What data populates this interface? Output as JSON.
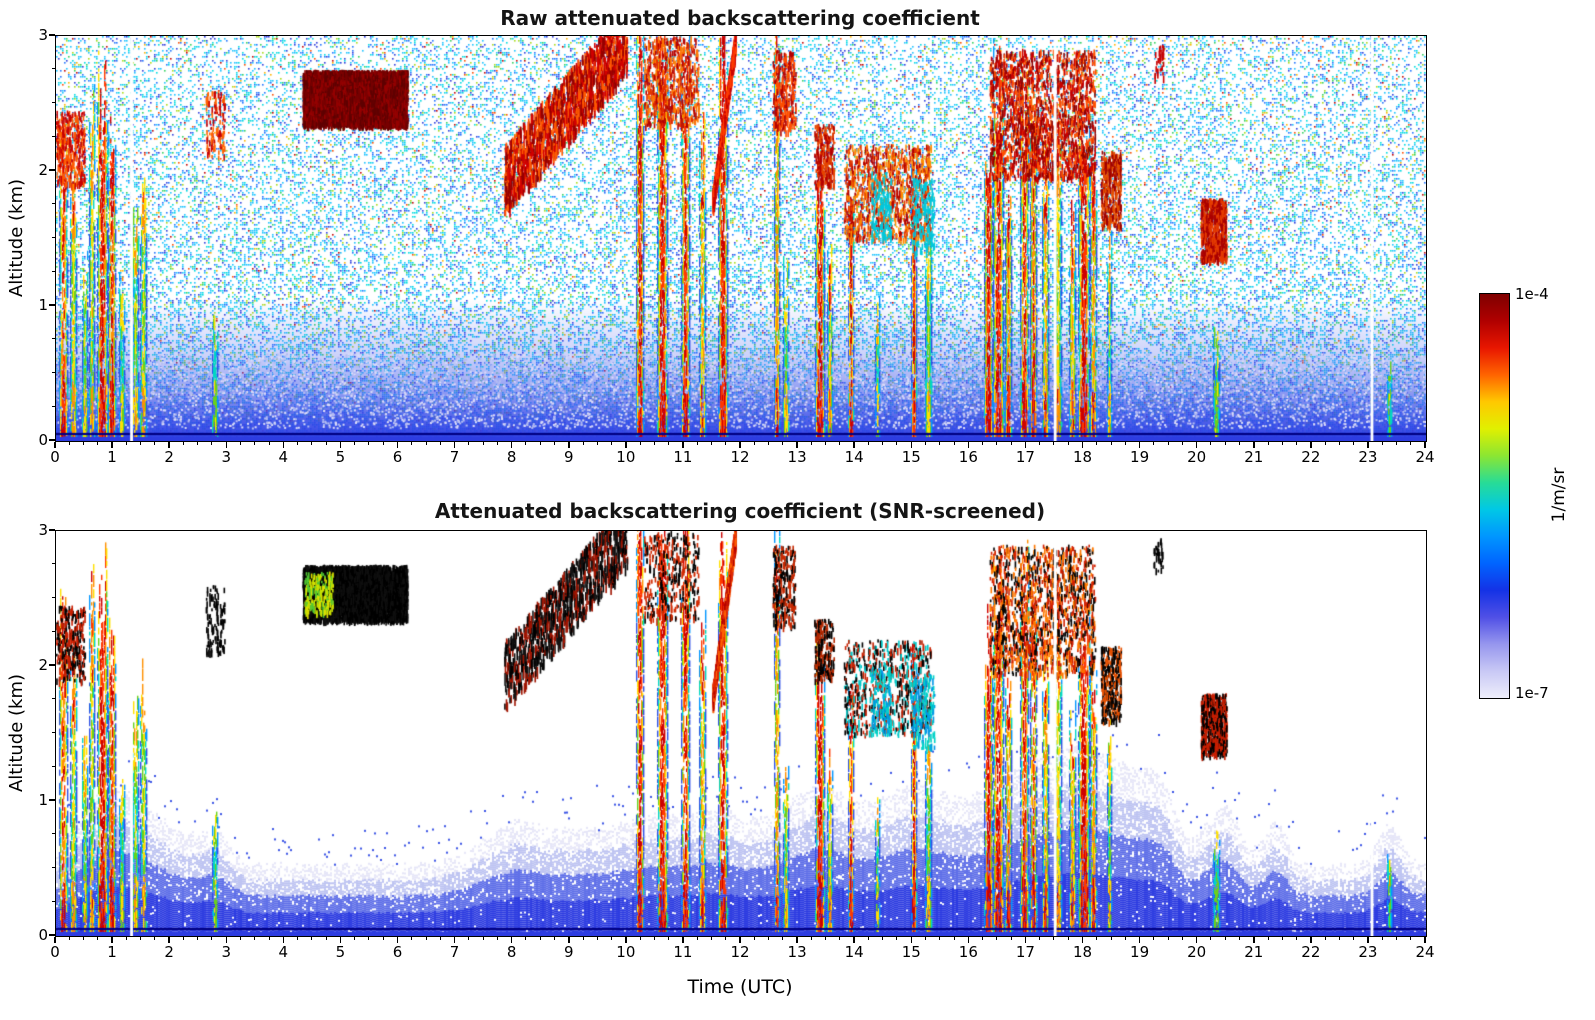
{
  "chart_data": {
    "type": "heatmap",
    "panels": [
      {
        "id": "raw",
        "title": "Raw attenuated backscattering coefficient"
      },
      {
        "id": "screened",
        "title": "Attenuated backscattering coefficient (SNR-screened)"
      }
    ],
    "x": {
      "label": "Time (UTC)",
      "min": 0,
      "max": 24,
      "minor_step": 0.25,
      "ticks": [
        0,
        1,
        2,
        3,
        4,
        5,
        6,
        7,
        8,
        9,
        10,
        11,
        12,
        13,
        14,
        15,
        16,
        17,
        18,
        19,
        20,
        21,
        22,
        23,
        24
      ]
    },
    "y": {
      "label": "Altitude (km)",
      "min": 0,
      "max": 3,
      "minor_step": 0.25,
      "ticks": [
        0,
        1,
        2,
        3
      ]
    },
    "colorbar": {
      "max_label": "1e-4",
      "min_label": "1e-7",
      "unit": "1/m/sr",
      "colors": [
        "#7f0000",
        "#b00000",
        "#e81600",
        "#ff6400",
        "#ffc800",
        "#e1f000",
        "#8ce632",
        "#28dc96",
        "#00c8e6",
        "#0096ff",
        "#0064ff",
        "#1432e6",
        "#5050e6",
        "#9696ee",
        "#c8c8f5",
        "#eeeefb"
      ]
    },
    "gaps": [
      1.32,
      17.5,
      23.05
    ],
    "boundary_layer": {
      "base_top_km": 0.5,
      "bumps": [
        [
          0.8,
          0.45,
          0.5
        ],
        [
          1.5,
          0.35,
          0.3
        ],
        [
          2.2,
          0.35,
          0.2
        ],
        [
          2.8,
          0.25,
          0.2
        ],
        [
          7.9,
          0.5,
          0.2
        ],
        [
          9.0,
          0.9,
          0.22
        ],
        [
          10.6,
          0.7,
          0.3
        ],
        [
          11.7,
          0.5,
          0.3
        ],
        [
          12.7,
          0.4,
          0.25
        ],
        [
          13.4,
          0.4,
          0.3
        ],
        [
          14.1,
          0.8,
          0.35
        ],
        [
          15.1,
          0.5,
          0.3
        ],
        [
          16.5,
          0.9,
          0.45
        ],
        [
          17.5,
          0.7,
          0.45
        ],
        [
          18.1,
          0.4,
          0.4
        ],
        [
          18.9,
          0.4,
          0.55
        ],
        [
          19.4,
          0.25,
          0.35
        ],
        [
          20.4,
          0.3,
          0.45
        ],
        [
          21.35,
          0.2,
          0.3
        ],
        [
          23.35,
          0.2,
          0.3
        ]
      ]
    },
    "plumes": [
      [
        0.12,
        0.07,
        2.25,
        0.85
      ],
      [
        0.3,
        0.05,
        1.95,
        0.6
      ],
      [
        0.5,
        0.05,
        1.3,
        0.5
      ],
      [
        0.62,
        0.04,
        2.4,
        0.6
      ],
      [
        0.8,
        0.09,
        2.55,
        1.0
      ],
      [
        0.97,
        0.06,
        2.1,
        0.9
      ],
      [
        1.15,
        0.04,
        1.1,
        0.4
      ],
      [
        1.38,
        0.05,
        1.6,
        0.5
      ],
      [
        1.52,
        0.05,
        1.9,
        0.55
      ],
      [
        2.78,
        0.04,
        0.85,
        0.35
      ],
      [
        10.22,
        0.06,
        2.95,
        1.0
      ],
      [
        10.62,
        0.09,
        2.95,
        1.0
      ],
      [
        11.02,
        0.07,
        2.8,
        0.95
      ],
      [
        11.32,
        0.05,
        2.2,
        0.7
      ],
      [
        11.68,
        0.08,
        2.95,
        1.0
      ],
      [
        12.62,
        0.05,
        2.9,
        0.75
      ],
      [
        12.78,
        0.04,
        1.2,
        0.5
      ],
      [
        13.38,
        0.08,
        1.95,
        1.0
      ],
      [
        13.55,
        0.05,
        1.3,
        0.6
      ],
      [
        13.92,
        0.05,
        1.85,
        0.95
      ],
      [
        14.38,
        0.04,
        0.95,
        0.45
      ],
      [
        15.02,
        0.05,
        1.9,
        0.95
      ],
      [
        15.27,
        0.05,
        1.45,
        0.5
      ],
      [
        16.32,
        0.07,
        2.2,
        1.0
      ],
      [
        16.5,
        0.09,
        2.6,
        1.0
      ],
      [
        16.68,
        0.05,
        1.9,
        0.8
      ],
      [
        16.95,
        0.07,
        2.6,
        0.9
      ],
      [
        17.12,
        0.05,
        2.45,
        0.85
      ],
      [
        17.32,
        0.05,
        2.1,
        0.7
      ],
      [
        17.55,
        0.06,
        2.3,
        0.6
      ],
      [
        17.8,
        0.05,
        1.6,
        0.7
      ],
      [
        18.0,
        0.09,
        2.3,
        1.0
      ],
      [
        18.17,
        0.05,
        1.95,
        0.75
      ],
      [
        18.45,
        0.04,
        1.45,
        0.5
      ],
      [
        20.32,
        0.05,
        0.75,
        0.35
      ],
      [
        23.35,
        0.04,
        0.55,
        0.3
      ]
    ],
    "features": [
      {
        "t0": 4.32,
        "t1": 6.15,
        "a0": 2.35,
        "a1": 2.75,
        "dens": 14,
        "sdens": 12,
        "raw": [
          "#780000",
          "#960000",
          "#5f0000"
        ],
        "scr": [
          "#000000",
          "#0f0f0f"
        ]
      },
      {
        "t0": 4.35,
        "t1": 4.85,
        "a0": 2.4,
        "a1": 2.7,
        "dens": 0,
        "sdens": 2.5,
        "raw": [],
        "scr": [
          "#c8e100",
          "#50c832",
          "#e1e100"
        ]
      },
      {
        "t0": 7.85,
        "t1": 10.0,
        "a0": 1.95,
        "a1": 3.0,
        "dens": 1.2,
        "sdens": 0.8,
        "diag": true,
        "jit": 0.5,
        "raw": [
          "#960000",
          "#d20000",
          "#ff5a00"
        ],
        "scr": [
          "#000000",
          "#141414",
          "#a01400"
        ]
      },
      {
        "t0": 10.3,
        "t1": 11.25,
        "a0": 2.35,
        "a1": 3.0,
        "dens": 1.6,
        "sdens": 1.0,
        "raw": [
          "#b40000",
          "#e12d00",
          "#ff7800"
        ],
        "scr": [
          "#000000",
          "#d22800"
        ]
      },
      {
        "t0": 11.5,
        "t1": 11.9,
        "a0": 1.8,
        "a1": 3.0,
        "dens": 5,
        "diag": true,
        "jit": 0.14,
        "raw": [
          "#c80000",
          "#ff3c00"
        ],
        "scr": [
          "#e12800",
          "#ff6400",
          "#b40000"
        ]
      },
      {
        "t0": 12.55,
        "t1": 12.95,
        "a0": 2.3,
        "a1": 2.9,
        "dens": 2.0,
        "raw": [
          "#b40000",
          "#ff5000"
        ],
        "scr": [
          "#000000",
          "#c82800"
        ]
      },
      {
        "t0": 13.28,
        "t1": 13.62,
        "a0": 1.9,
        "a1": 2.35,
        "dens": 2.6,
        "raw": [
          "#b40000",
          "#e64600"
        ],
        "scr": [
          "#000000",
          "#b42800"
        ]
      },
      {
        "t0": 13.8,
        "t1": 15.32,
        "a0": 1.5,
        "a1": 2.2,
        "dens": 1.5,
        "sdens": 1.1,
        "raw": [
          "#b40000",
          "#e63c00",
          "#ff8c00"
        ],
        "scr": [
          "#000000",
          "#c82000",
          "#00c8c8"
        ]
      },
      {
        "t0": 16.35,
        "t1": 18.2,
        "a0": 1.95,
        "a1": 2.9,
        "dens": 1.6,
        "sdens": 1.4,
        "raw": [
          "#8c0000",
          "#c80000",
          "#ff5000"
        ],
        "scr": [
          "#000000",
          "#d22000",
          "#ff7800"
        ]
      },
      {
        "t0": 18.3,
        "t1": 18.65,
        "a0": 1.6,
        "a1": 2.15,
        "dens": 3.2,
        "raw": [
          "#a00000",
          "#e65000"
        ],
        "scr": [
          "#000000",
          "#e65000"
        ]
      },
      {
        "t0": 20.05,
        "t1": 20.5,
        "a0": 1.35,
        "a1": 1.8,
        "dens": 5.5,
        "raw": [
          "#aa0000",
          "#e63c00"
        ],
        "scr": [
          "#000000",
          "#c81e00"
        ]
      },
      {
        "t0": 2.62,
        "t1": 2.95,
        "a0": 2.1,
        "a1": 2.6,
        "dens": 1.1,
        "raw": [
          "#c80000",
          "#ff6400"
        ],
        "scr": [
          "#000000"
        ]
      },
      {
        "t0": 0.0,
        "t1": 0.5,
        "a0": 1.9,
        "a1": 2.45,
        "dens": 2.0,
        "raw": [
          "#c80000",
          "#ff5a00"
        ],
        "scr": [
          "#000000",
          "#c81e00"
        ]
      },
      {
        "t0": 14.28,
        "t1": 14.62,
        "a0": 1.5,
        "a1": 2.0,
        "dens": 1.3,
        "raw": [
          "#00c8dc"
        ],
        "scr": [
          "#00d2c8",
          "#0096e6"
        ]
      },
      {
        "t0": 15.0,
        "t1": 15.38,
        "a0": 1.4,
        "a1": 1.95,
        "dens": 1.3,
        "raw": [
          "#00c8dc"
        ],
        "scr": [
          "#00d2c8",
          "#0096e6"
        ]
      },
      {
        "t0": 19.22,
        "t1": 19.4,
        "a0": 2.7,
        "a1": 2.95,
        "dens": 1.2,
        "raw": [
          "#c80000"
        ],
        "scr": [
          "#000000"
        ]
      }
    ]
  }
}
